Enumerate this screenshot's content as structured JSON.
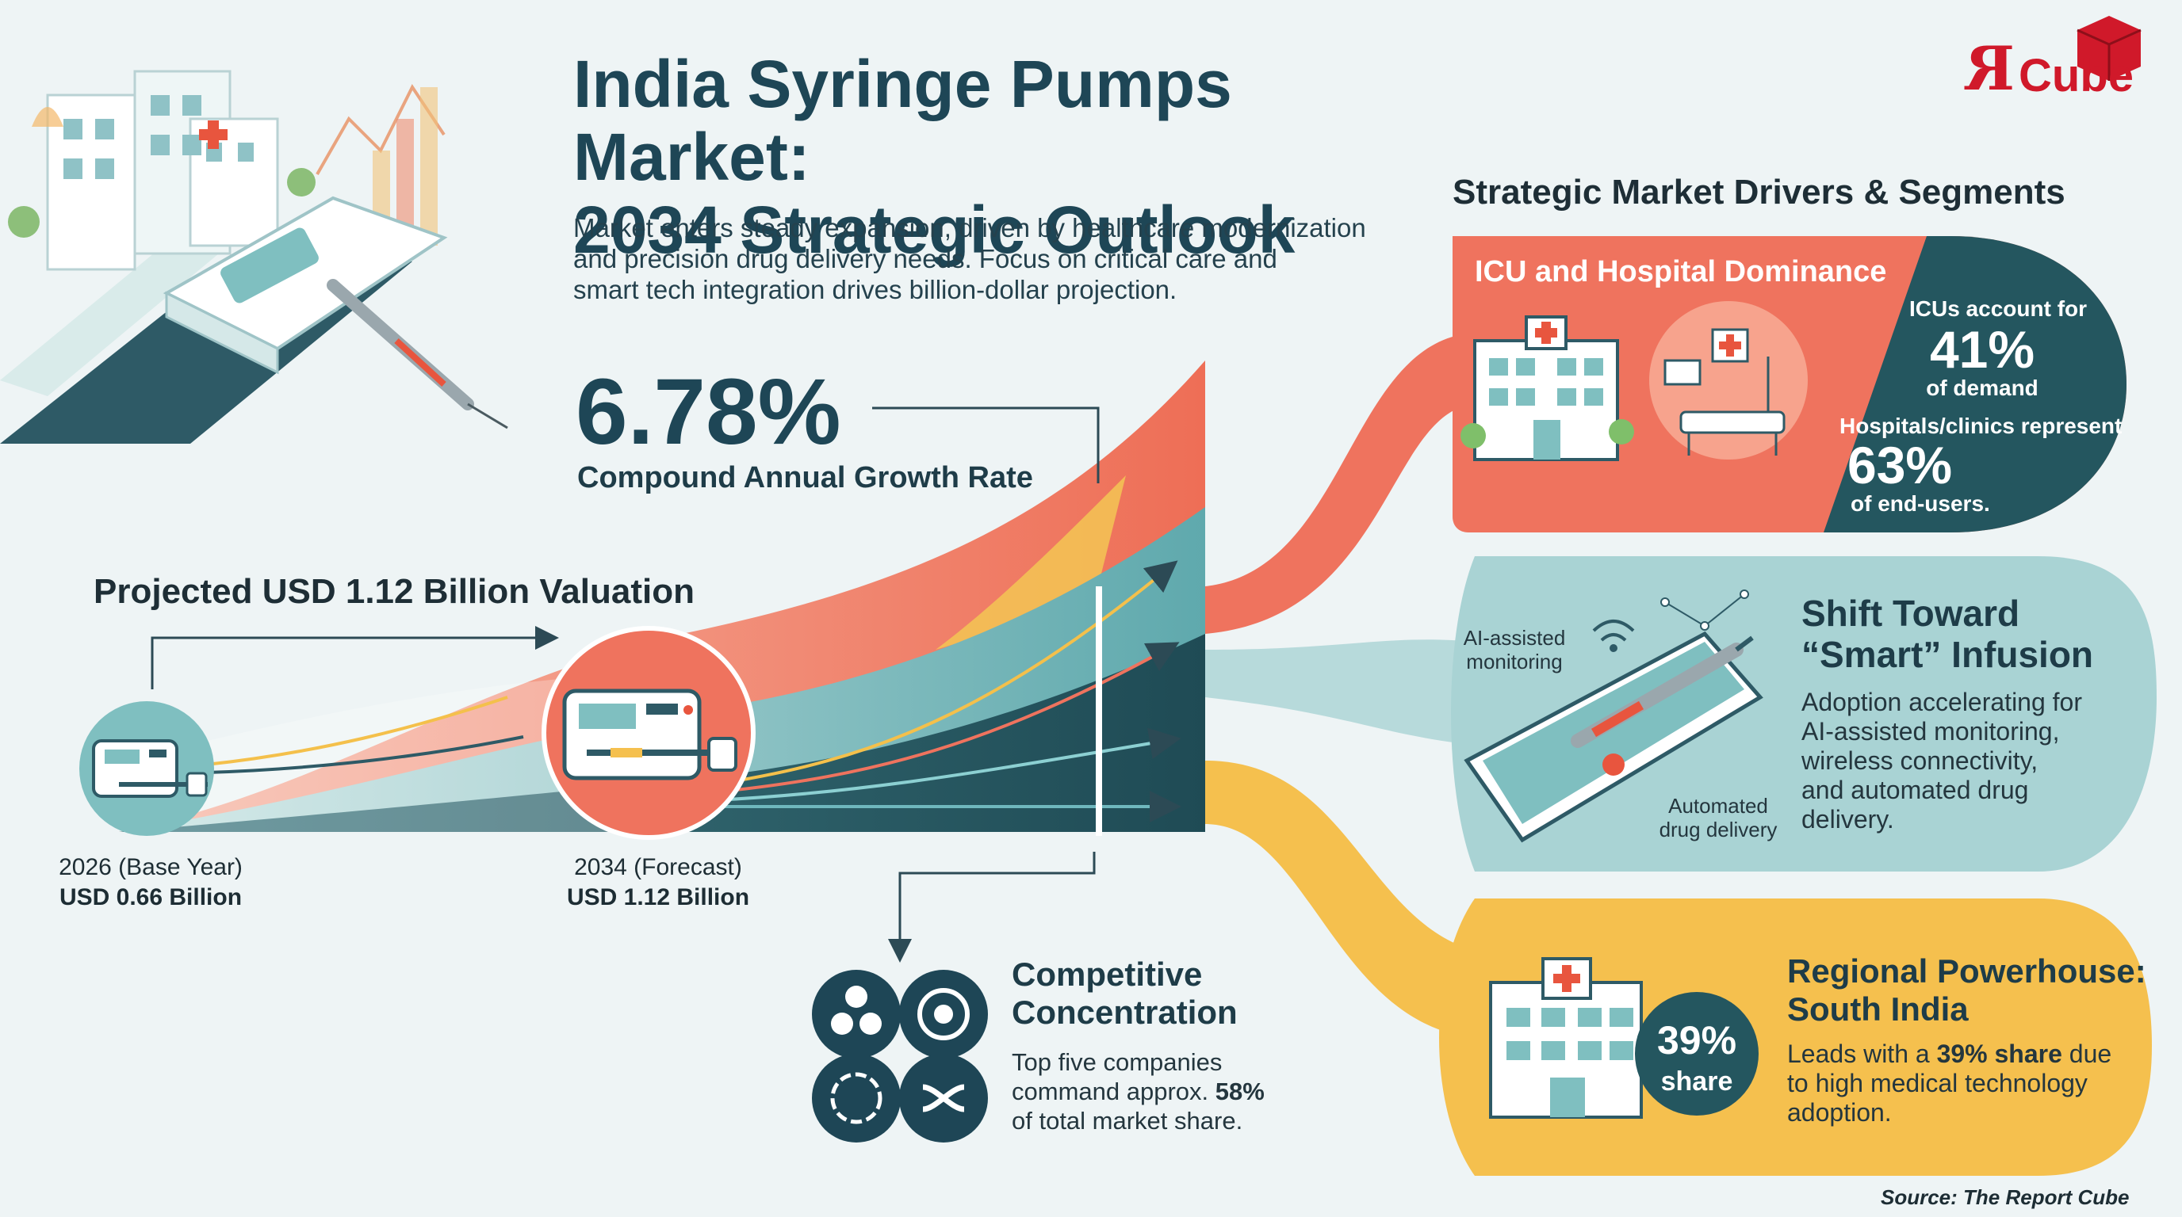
{
  "header": {
    "title_line1": "India Syringe Pumps Market:",
    "title_line2": "2034 Strategic Outlook",
    "subtitle_line1": "Market enters steady expansion, driven by healthcare modernization",
    "subtitle_line2": "and precision drug delivery needs. Focus on critical care and",
    "subtitle_line3": "smart tech integration drives billion-dollar projection."
  },
  "logo": {
    "mark": "R",
    "text": "Cube"
  },
  "growth": {
    "cagr_value": "6.78%",
    "cagr_label": "Compound Annual Growth Rate",
    "projection_heading": "Projected USD 1.12 Billion Valuation",
    "base_year_label": "2026 (Base Year)",
    "base_year_value": "USD 0.66 Billion",
    "forecast_label": "2034 (Forecast)",
    "forecast_value": "USD 1.12 Billion"
  },
  "competition": {
    "title_line1": "Competitive",
    "title_line2": "Concentration",
    "desc_line1": "Top five companies",
    "desc_line2_prefix": "command approx. ",
    "desc_line2_bold": "58%",
    "desc_line3": "of total market share."
  },
  "drivers": {
    "heading": "Strategic Market Drivers & Segments",
    "icu": {
      "title": "ICU and Hospital Dominance",
      "stat1_label": "ICUs account for",
      "stat1_value": "41%",
      "stat1_suffix": "of demand",
      "stat2_label": "Hospitals/clinics represent",
      "stat2_value": "63%",
      "stat2_suffix": "of end-users."
    },
    "smart": {
      "title_line1": "Shift Toward",
      "title_line2": "“Smart” Infusion",
      "desc_line1": "Adoption accelerating for",
      "desc_line2": "AI-assisted monitoring,",
      "desc_line3": "wireless connectivity,",
      "desc_line4": "and automated drug",
      "desc_line5": "delivery.",
      "callout1_line1": "AI-assisted",
      "callout1_line2": "monitoring",
      "callout2_line1": "Automated",
      "callout2_line2": "drug delivery"
    },
    "region": {
      "title_line1": "Regional Powerhouse:",
      "title_line2": "South India",
      "badge_value": "39%",
      "badge_label": "share",
      "desc_line1_prefix": "Leads with a ",
      "desc_line1_bold": "39% share",
      "desc_line1_suffix": " due",
      "desc_line2": "to high medical technology",
      "desc_line3": "adoption."
    }
  },
  "source": "Source: The Report Cube",
  "colors": {
    "navy": "#1e4656",
    "coral": "#ef735e",
    "teal": "#7fbfc0",
    "dark_teal": "#24565f",
    "yellow": "#f5c04e",
    "logo_red": "#d0192a"
  }
}
